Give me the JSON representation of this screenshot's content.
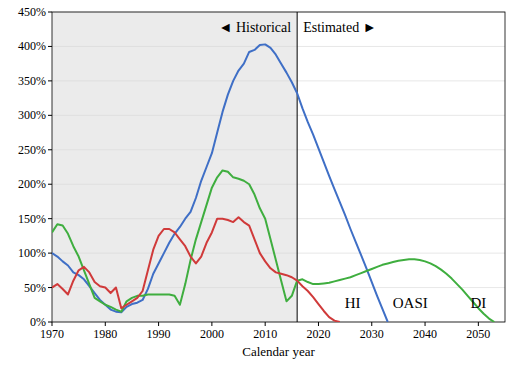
{
  "chart_data": {
    "type": "line",
    "x_label": "Calendar year",
    "divider": {
      "x": 2016,
      "labels": [
        "◄ Historical",
        "Estimated ►"
      ]
    },
    "x": [
      1970,
      1971,
      1972,
      1973,
      1974,
      1975,
      1976,
      1977,
      1978,
      1979,
      1980,
      1981,
      1982,
      1983,
      1984,
      1985,
      1986,
      1987,
      1988,
      1989,
      1990,
      1991,
      1992,
      1993,
      1994,
      1995,
      1996,
      1997,
      1998,
      1999,
      2000,
      2001,
      2002,
      2003,
      2004,
      2005,
      2006,
      2007,
      2008,
      2009,
      2010,
      2011,
      2012,
      2013,
      2014,
      2015,
      2016,
      2017,
      2018,
      2019,
      2020,
      2021,
      2022,
      2023,
      2024,
      2025,
      2026,
      2027,
      2028,
      2029,
      2030,
      2031,
      2032,
      2033,
      2034,
      2035,
      2036,
      2037,
      2038,
      2039,
      2040,
      2041,
      2042,
      2043,
      2044,
      2045,
      2046,
      2047,
      2048,
      2049,
      2050,
      2051,
      2052,
      2053
    ],
    "series": [
      {
        "name": "OASI",
        "color": "#3f6fc6",
        "values": [
          100,
          95,
          88,
          82,
          72,
          68,
          62,
          52,
          42,
          32,
          25,
          18,
          15,
          14,
          22,
          26,
          28,
          32,
          48,
          70,
          85,
          100,
          115,
          128,
          138,
          150,
          160,
          180,
          205,
          225,
          245,
          275,
          305,
          330,
          350,
          365,
          375,
          392,
          395,
          402,
          403,
          398,
          388,
          375,
          362,
          348,
          332,
          310,
          290,
          272,
          252,
          232,
          212,
          193,
          174,
          155,
          135,
          116,
          97,
          78,
          58,
          38,
          19,
          0,
          null,
          null,
          null,
          null,
          null,
          null,
          null,
          null,
          null,
          null,
          null,
          null,
          null,
          null,
          null,
          null,
          null,
          null,
          null,
          null
        ]
      },
      {
        "name": "DI",
        "color": "#3fae3f",
        "values": [
          130,
          142,
          140,
          128,
          110,
          95,
          75,
          55,
          35,
          30,
          25,
          22,
          18,
          15,
          30,
          35,
          38,
          38,
          40,
          40,
          40,
          40,
          40,
          38,
          25,
          55,
          90,
          120,
          145,
          170,
          195,
          210,
          220,
          218,
          210,
          208,
          205,
          200,
          185,
          165,
          150,
          120,
          90,
          60,
          30,
          38,
          60,
          62,
          58,
          55,
          55,
          56,
          57,
          59,
          61,
          63,
          65,
          68,
          71,
          74,
          77,
          80,
          83,
          85,
          87,
          89,
          90,
          91,
          91,
          90,
          88,
          85,
          81,
          76,
          70,
          63,
          55,
          47,
          38,
          29,
          20,
          12,
          5,
          0
        ]
      },
      {
        "name": "HI",
        "color": "#d03a3a",
        "values": [
          50,
          55,
          48,
          40,
          60,
          75,
          80,
          72,
          58,
          52,
          50,
          42,
          50,
          20,
          25,
          30,
          35,
          45,
          75,
          105,
          125,
          135,
          135,
          130,
          120,
          110,
          95,
          85,
          95,
          115,
          130,
          150,
          150,
          148,
          145,
          152,
          145,
          140,
          120,
          100,
          88,
          78,
          72,
          70,
          68,
          65,
          60,
          52,
          45,
          36,
          26,
          16,
          7,
          2,
          0,
          null,
          null,
          null,
          null,
          null,
          null,
          null,
          null,
          null,
          null,
          null,
          null,
          null,
          null,
          null,
          null,
          null,
          null,
          null,
          null,
          null,
          null,
          null,
          null,
          null,
          null,
          null,
          null,
          null
        ]
      }
    ],
    "xlim": [
      1970,
      2055
    ],
    "xticks": [
      1970,
      1980,
      1990,
      2000,
      2010,
      2020,
      2030,
      2040,
      2050
    ],
    "ylim": [
      0,
      450
    ],
    "yticks": [
      {
        "value": 0,
        "label": "0%"
      },
      {
        "value": 50,
        "label": "50%"
      },
      {
        "value": 100,
        "label": "100%"
      },
      {
        "value": 150,
        "label": "150%"
      },
      {
        "value": 200,
        "label": "200%"
      },
      {
        "value": 250,
        "label": "250%"
      },
      {
        "value": 300,
        "label": "300%"
      },
      {
        "value": 350,
        "label": "350%"
      },
      {
        "value": 400,
        "label": "400%"
      },
      {
        "value": 450,
        "label": "450%"
      }
    ],
    "grid": true
  }
}
